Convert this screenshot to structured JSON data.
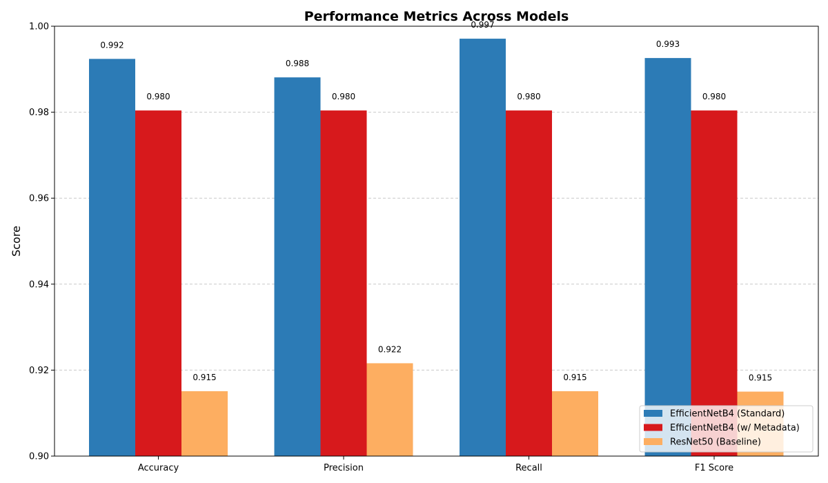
{
  "chart_data": {
    "type": "bar",
    "title": "Performance Metrics Across Models",
    "xlabel": "",
    "ylabel": "Score",
    "categories": [
      "Accuracy",
      "Precision",
      "Recall",
      "F1 Score"
    ],
    "ylim": [
      0.9,
      1.0
    ],
    "yticks": [
      0.9,
      0.92,
      0.94,
      0.96,
      0.98,
      1.0
    ],
    "ytick_labels": [
      "0.90",
      "0.92",
      "0.94",
      "0.96",
      "0.98",
      "1.00"
    ],
    "grid": "y-dashed",
    "legend_position": "bottom-right",
    "series": [
      {
        "name": "EfficientNetB4 (Standard)",
        "color": "#2c7bb6",
        "values": [
          0.9924,
          0.9881,
          0.9971,
          0.9926
        ],
        "value_labels": [
          "0.992",
          "0.988",
          "0.997",
          "0.993"
        ]
      },
      {
        "name": "EfficientNetB4 (w/ Metadata)",
        "color": "#d7191c",
        "values": [
          0.9804,
          0.9804,
          0.9804,
          0.9804
        ],
        "value_labels": [
          "0.980",
          "0.980",
          "0.980",
          "0.980"
        ]
      },
      {
        "name": "ResNet50 (Baseline)",
        "color": "#fdae61",
        "values": [
          0.9151,
          0.9216,
          0.9151,
          0.915
        ],
        "value_labels": [
          "0.915",
          "0.922",
          "0.915",
          "0.915"
        ]
      }
    ]
  }
}
